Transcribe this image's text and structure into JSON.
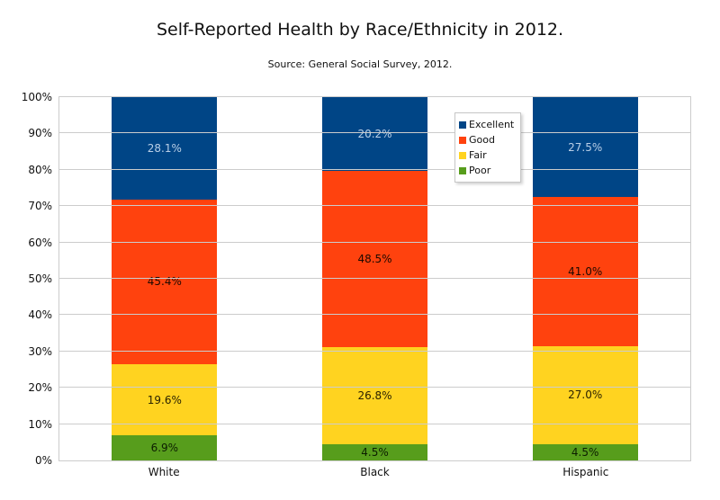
{
  "page": {
    "title": "Self-Reported Health by Race/Ethnicity in 2012.",
    "subtitle": "Source: General Social Survey, 2012."
  },
  "colors": {
    "excellent": "#004586",
    "good": "#ff420e",
    "fair": "#ffd320",
    "poor": "#579d1c",
    "gridline": "#cccccc",
    "text": "#111111"
  },
  "chart_data": {
    "type": "bar",
    "stacked": true,
    "stack_total": 100,
    "title": "Self-Reported Health by Race/Ethnicity in 2012.",
    "subtitle": "Source: General Social Survey, 2012.",
    "xlabel": "",
    "ylabel": "",
    "ylim": [
      0,
      100
    ],
    "grid": "horizontal",
    "y_ticks": [
      "0%",
      "10%",
      "20%",
      "30%",
      "40%",
      "50%",
      "60%",
      "70%",
      "80%",
      "90%",
      "100%"
    ],
    "categories": [
      "White",
      "Black",
      "Hispanic"
    ],
    "series": [
      {
        "name": "Excellent",
        "color": "#004586",
        "label_color": "#b9cfe7",
        "values": [
          28.1,
          20.2,
          27.5
        ],
        "labels": [
          "28.1%",
          "20.2%",
          "27.5%"
        ]
      },
      {
        "name": "Good",
        "color": "#ff420e",
        "label_color": "#1c0900",
        "values": [
          45.4,
          48.5,
          41.0
        ],
        "labels": [
          "45.4%",
          "48.5%",
          "41.0%"
        ]
      },
      {
        "name": "Fair",
        "color": "#ffd320",
        "label_color": "#2b2200",
        "values": [
          19.6,
          26.8,
          27.0
        ],
        "labels": [
          "19.6%",
          "26.8%",
          "27.0%"
        ]
      },
      {
        "name": "Poor",
        "color": "#579d1c",
        "label_color": "#0c1d00",
        "values": [
          6.9,
          4.5,
          4.5
        ],
        "labels": [
          "6.9%",
          "4.5%",
          "4.5%"
        ]
      }
    ],
    "legend": {
      "position": "inside-top-right",
      "entries": [
        "Excellent",
        "Good",
        "Fair",
        "Poor"
      ]
    }
  }
}
